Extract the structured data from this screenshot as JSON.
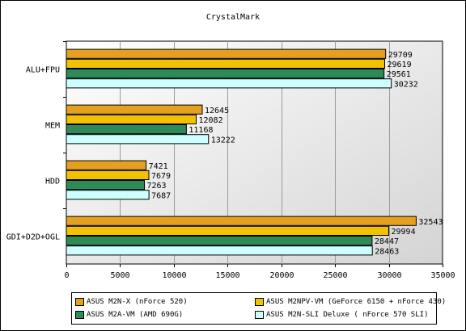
{
  "chart_data": {
    "type": "bar",
    "orientation": "horizontal",
    "title": "CrystalMark",
    "xlabel": "",
    "ylabel": "",
    "categories": [
      "ALU+FPU",
      "MEM",
      "HDD",
      "GDI+D2D+OGL"
    ],
    "series": [
      {
        "name": "ASUS M2N-X (nForce 520)",
        "color": "#E6A020",
        "values": [
          29709,
          12645,
          7421,
          32543
        ]
      },
      {
        "name": "ASUS M2NPV-VM (GeForce 6150 + nForce 430)",
        "color": "#F2C200",
        "values": [
          29619,
          12082,
          7679,
          29994
        ]
      },
      {
        "name": "ASUS M2A-VM (AMD 690G)",
        "color": "#2E8B57",
        "values": [
          29561,
          11168,
          7263,
          28447
        ]
      },
      {
        "name": "ASUS M2N-SLI Deluxe ( nForce 570 SLI)",
        "color": "#CCFFFF",
        "values": [
          30232,
          13222,
          7687,
          28463
        ]
      }
    ],
    "xlim": [
      0,
      35000
    ],
    "xticks": [
      "0",
      "5000",
      "10000",
      "15000",
      "20000",
      "25000",
      "30000",
      "35000"
    ],
    "xtick_values": [
      0,
      5000,
      10000,
      15000,
      20000,
      25000,
      30000,
      35000
    ],
    "grid": true,
    "legend_position": "bottom",
    "value_labels": true,
    "plot_background": "gradient light gray"
  }
}
